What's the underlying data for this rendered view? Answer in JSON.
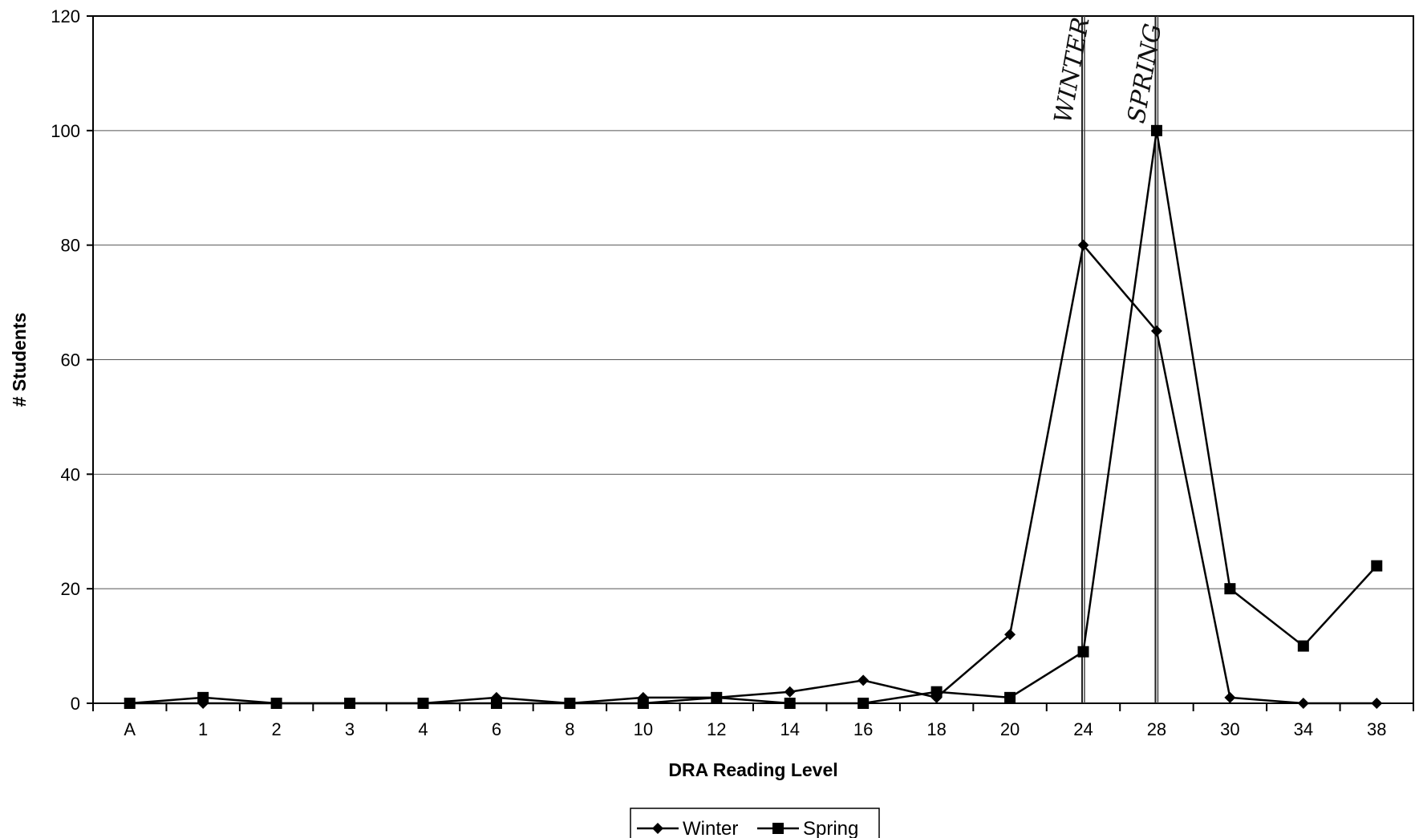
{
  "chart_data": {
    "type": "line",
    "title": "",
    "xlabel": "DRA Reading Level",
    "ylabel": "# Students",
    "categories": [
      "A",
      "1",
      "2",
      "3",
      "4",
      "6",
      "8",
      "10",
      "12",
      "14",
      "16",
      "18",
      "20",
      "24",
      "28",
      "30",
      "34",
      "38"
    ],
    "ylim": [
      0,
      120
    ],
    "yticks": [
      0,
      20,
      40,
      60,
      80,
      100,
      120
    ],
    "grid": "horizontal",
    "legend_position": "bottom-center",
    "series": [
      {
        "name": "Winter",
        "marker": "diamond",
        "color": "#000000",
        "values": [
          0,
          0,
          0,
          0,
          0,
          1,
          0,
          1,
          1,
          2,
          4,
          1,
          12,
          80,
          65,
          1,
          0,
          0
        ]
      },
      {
        "name": "Spring",
        "marker": "square",
        "color": "#000000",
        "values": [
          0,
          1,
          0,
          0,
          0,
          0,
          0,
          0,
          1,
          0,
          0,
          2,
          1,
          9,
          100,
          20,
          10,
          24
        ]
      }
    ],
    "annotations": [
      {
        "text": "WINTER",
        "at_category": "24"
      },
      {
        "text": "SPRING",
        "at_category": "28"
      }
    ]
  }
}
